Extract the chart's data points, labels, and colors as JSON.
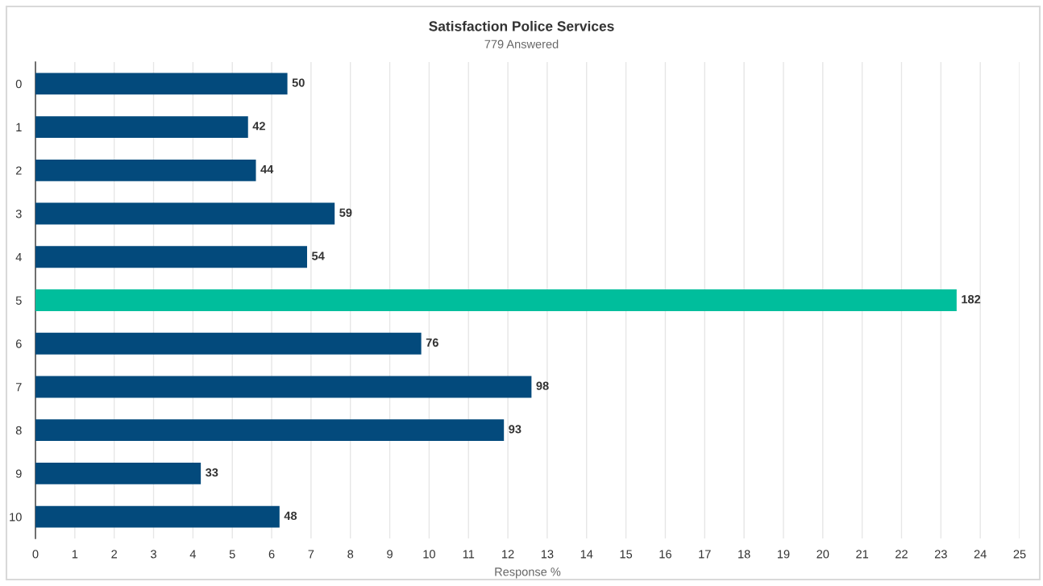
{
  "chart_data": {
    "type": "bar",
    "orientation": "horizontal",
    "title": "Satisfaction Police Services",
    "subtitle": "779 Answered",
    "xlabel": "Response %",
    "categories": [
      "0",
      "1",
      "2",
      "3",
      "4",
      "5",
      "6",
      "7",
      "8",
      "9",
      "10"
    ],
    "values": [
      6.4,
      5.4,
      5.6,
      7.6,
      6.9,
      23.4,
      9.8,
      12.6,
      11.9,
      4.2,
      6.2
    ],
    "colors": [
      "#034a7c",
      "#034a7c",
      "#034a7c",
      "#034a7c",
      "#034a7c",
      "#00be9c",
      "#034a7c",
      "#034a7c",
      "#034a7c",
      "#034a7c",
      "#034a7c"
    ],
    "annotations": [
      {
        "text": "50",
        "x": 6.4,
        "y": "0"
      },
      {
        "text": "42",
        "x": 5.4,
        "y": "1"
      },
      {
        "text": "44",
        "x": 5.6,
        "y": "2"
      },
      {
        "text": "59",
        "x": 7.6,
        "y": "3"
      },
      {
        "text": "54",
        "x": 6.9,
        "y": "4"
      },
      {
        "text": "182",
        "x": 23.4,
        "y": "5"
      },
      {
        "text": "76",
        "x": 9.8,
        "y": "6"
      },
      {
        "text": "98",
        "x": 12.6,
        "y": "7"
      },
      {
        "text": "93",
        "x": 11.9,
        "y": "8"
      },
      {
        "text": "33",
        "x": 4.2,
        "y": "9"
      },
      {
        "text": "48",
        "x": 6.2,
        "y": "10"
      }
    ],
    "xlim": [
      0,
      25
    ],
    "xticks": [
      0,
      1,
      2,
      3,
      4,
      5,
      6,
      7,
      8,
      9,
      10,
      11,
      12,
      13,
      14,
      15,
      16,
      17,
      18,
      19,
      20,
      21,
      22,
      23,
      24,
      25
    ],
    "grid": "x"
  }
}
